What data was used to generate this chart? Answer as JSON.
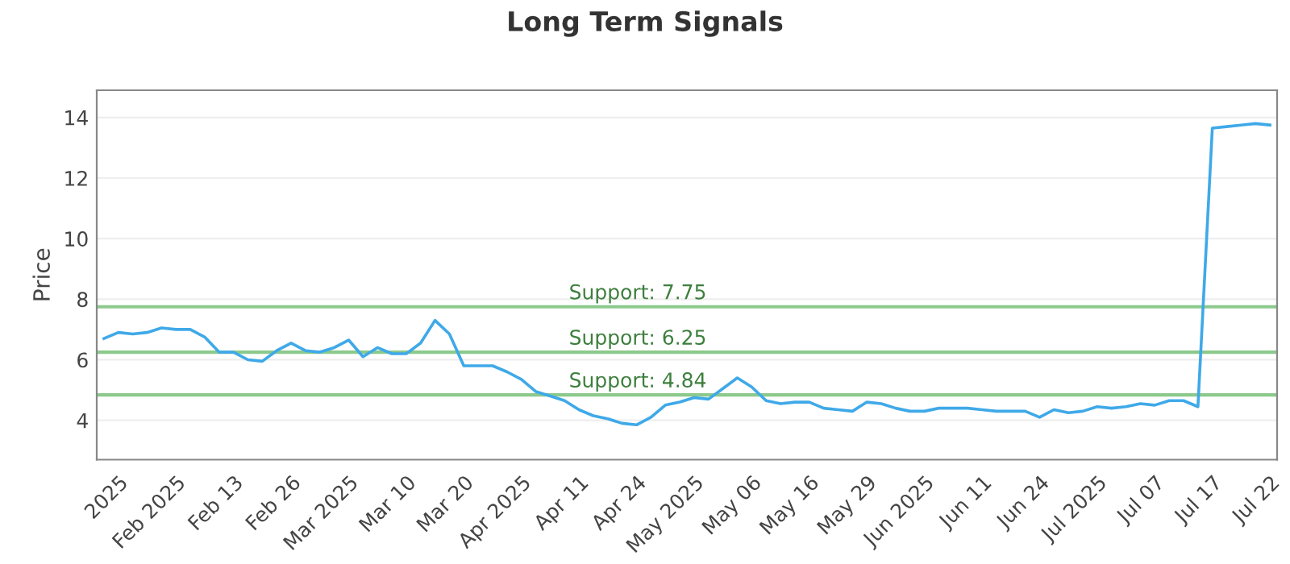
{
  "chart_data": {
    "type": "line",
    "title": "Long Term Signals",
    "ylabel": "Price",
    "categories": [
      null,
      "2025",
      null,
      null,
      null,
      "Feb 2025",
      null,
      null,
      null,
      "Feb 13",
      null,
      null,
      null,
      "Feb 26",
      null,
      null,
      null,
      "Mar 2025",
      null,
      null,
      null,
      "Mar 10",
      null,
      null,
      null,
      "Mar 20",
      null,
      null,
      null,
      "Apr 2025",
      null,
      null,
      null,
      "Apr 11",
      null,
      null,
      null,
      "Apr 24",
      null,
      null,
      null,
      "May 2025",
      null,
      null,
      null,
      "May 06",
      null,
      null,
      null,
      "May 16",
      null,
      null,
      null,
      "May 29",
      null,
      null,
      null,
      "Jun 2025",
      null,
      null,
      null,
      "Jun 11",
      null,
      null,
      null,
      "Jun 24",
      null,
      null,
      null,
      "Jul 2025",
      null,
      null,
      null,
      "Jul 07",
      null,
      null,
      null,
      "Jul 17",
      null,
      null,
      null,
      "Jul 22"
    ],
    "series": [
      {
        "color": "#3fa9e8",
        "values": [
          6.7,
          6.9,
          6.85,
          6.9,
          7.05,
          7.0,
          7.0,
          6.75,
          6.25,
          6.25,
          6.0,
          5.95,
          6.3,
          6.55,
          6.3,
          6.25,
          6.4,
          6.65,
          6.1,
          6.4,
          6.2,
          6.2,
          6.55,
          7.3,
          6.85,
          5.8,
          5.8,
          5.8,
          5.6,
          5.35,
          4.95,
          4.8,
          4.65,
          4.35,
          4.15,
          4.05,
          3.9,
          3.85,
          4.1,
          4.5,
          4.6,
          4.75,
          4.7,
          5.05,
          5.4,
          5.1,
          4.65,
          4.55,
          4.6,
          4.6,
          4.4,
          4.35,
          4.3,
          4.6,
          4.55,
          4.4,
          4.3,
          4.3,
          4.4,
          4.4,
          4.4,
          4.35,
          4.3,
          4.3,
          4.3,
          4.1,
          4.35,
          4.25,
          4.3,
          4.45,
          4.4,
          4.45,
          4.55,
          4.5,
          4.65,
          4.65,
          4.45,
          13.65,
          13.7,
          13.75,
          13.8,
          13.75
        ]
      }
    ],
    "ylim": [
      2.7,
      14.9
    ],
    "yticks": [
      4,
      6,
      8,
      10,
      12,
      14
    ],
    "grid": "y",
    "marker": "none",
    "line_style": "solid",
    "legend": false,
    "ref_lines": [
      {
        "axis": "y",
        "value": 7.75,
        "label": "Support: 7.75",
        "color": "#8cc98c"
      },
      {
        "axis": "y",
        "value": 6.25,
        "label": "Support: 6.25",
        "color": "#8cc98c"
      },
      {
        "axis": "y",
        "value": 4.84,
        "label": "Support: 4.84",
        "color": "#8cc98c"
      }
    ]
  }
}
